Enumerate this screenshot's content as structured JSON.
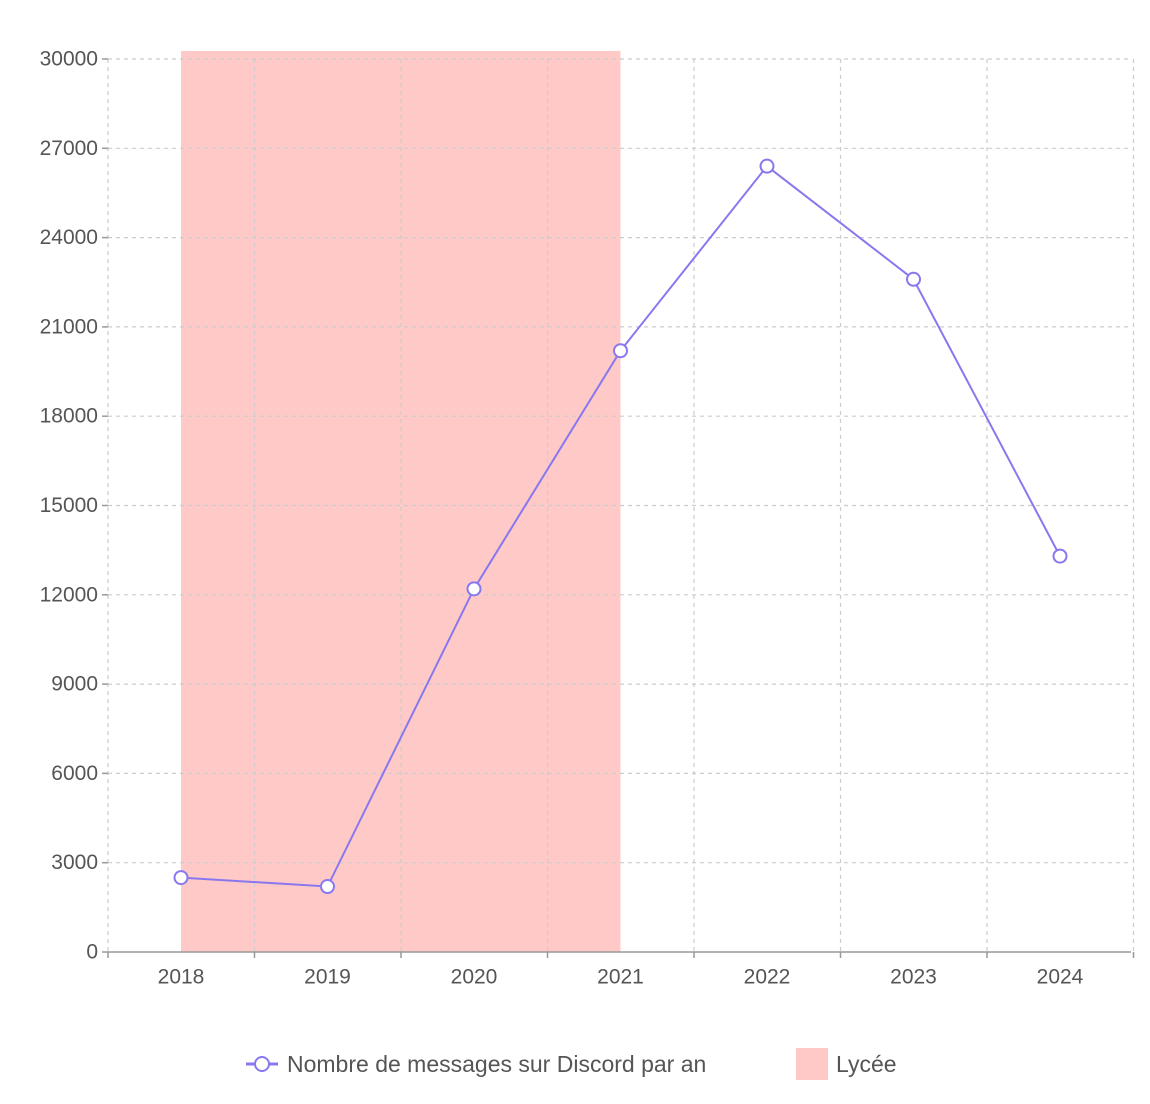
{
  "chart_data": {
    "type": "line",
    "x": [
      "2018",
      "2019",
      "2020",
      "2021",
      "2022",
      "2023",
      "2024"
    ],
    "series": [
      {
        "name": "Nombre de messages sur Discord par an",
        "values": [
          2500,
          2200,
          12200,
          20200,
          26400,
          22600,
          13300
        ],
        "color": "#8878f0"
      }
    ],
    "highlight_band": {
      "name": "Lycée",
      "from": "2018",
      "to": "2021",
      "color": "#ffc9c7"
    },
    "ylim": [
      0,
      30000
    ],
    "yticks": [
      0,
      3000,
      6000,
      9000,
      12000,
      15000,
      18000,
      21000,
      24000,
      27000,
      30000
    ],
    "grid": true,
    "legend_position": "bottom-center",
    "title": "",
    "xlabel": "",
    "ylabel": ""
  }
}
